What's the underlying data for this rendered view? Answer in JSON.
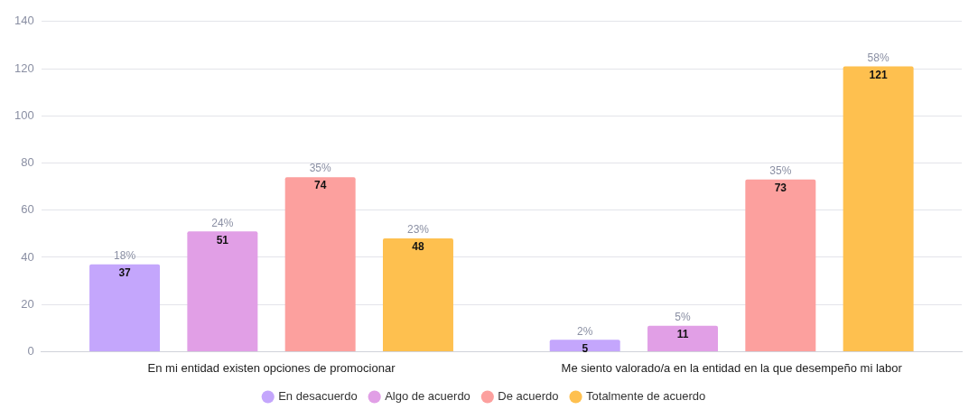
{
  "chart_data": {
    "type": "bar",
    "categories": [
      "En mi entidad existen opciones de promocionar",
      "Me siento valorado/a en la entidad en la que desempeño mi labor"
    ],
    "series": [
      {
        "name": "En desacuerdo",
        "color": "#c4a6fc",
        "values": [
          37,
          5
        ]
      },
      {
        "name": "Algo de acuerdo",
        "color": "#e19fe6",
        "values": [
          51,
          11
        ]
      },
      {
        "name": "De acuerdo",
        "color": "#fca09e",
        "values": [
          74,
          73
        ]
      },
      {
        "name": "Totalmente de acuerdo",
        "color": "#fec04f",
        "values": [
          48,
          121
        ]
      }
    ],
    "annotations": [
      "18%",
      "24%",
      "35%",
      "23%",
      "2%",
      "5%",
      "35%",
      "58%"
    ],
    "ylim": [
      0,
      140
    ],
    "yticks": [
      0,
      20,
      40,
      60,
      80,
      100,
      120,
      140
    ],
    "grid": "y",
    "legend": "bottom",
    "data_labels": true
  }
}
